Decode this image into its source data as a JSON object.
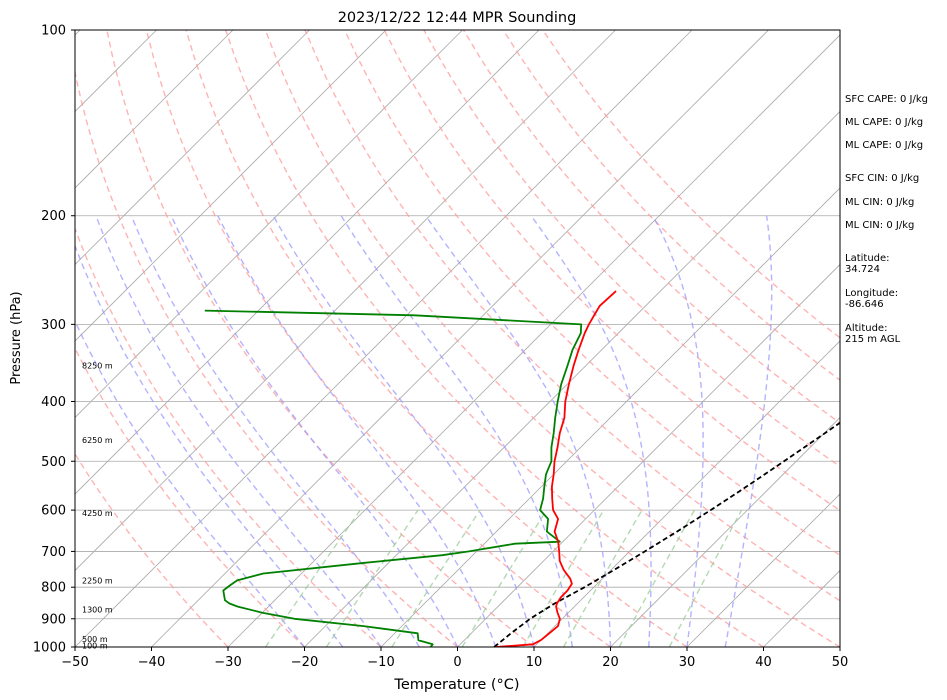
{
  "chart_data": {
    "type": "skew-t",
    "title": "2023/12/22 12:44 MPR Sounding",
    "xlabel": "Temperature (°C)",
    "ylabel": "Pressure (hPa)",
    "xlim": [
      -50,
      50
    ],
    "ylim": [
      1000,
      100
    ],
    "y_scale": "log",
    "skew_degrees": 45,
    "grid": true,
    "x_ticks": [
      -50,
      -40,
      -30,
      -20,
      -10,
      0,
      10,
      20,
      30,
      40,
      50
    ],
    "y_ticks": [
      100,
      200,
      300,
      400,
      500,
      600,
      700,
      800,
      900,
      1000
    ],
    "colors": {
      "temperature": "#ff0000",
      "dewpoint": "#008000",
      "parcel": "#000000",
      "dry_adiabats": "#ff9999",
      "moist_adiabats": "#9999ff",
      "mixing_ratio": "#99cc99",
      "isotherms": "#aaaaaa",
      "isobars": "#aaaaaa"
    },
    "dry_adiabats_theta_c": [
      -30,
      -20,
      -10,
      0,
      10,
      20,
      30,
      40,
      50,
      60,
      70,
      80,
      90,
      100,
      110,
      120
    ],
    "moist_adiabats_theta_c": [
      -20,
      -15,
      -10,
      -5,
      0,
      5,
      10,
      15,
      20,
      25,
      30,
      35
    ],
    "mixing_ratio_gkg": [
      0.5,
      1,
      2,
      4,
      7,
      10,
      16,
      24
    ],
    "temperature": {
      "p": [
        1000,
        990,
        975,
        950,
        925,
        900,
        880,
        860,
        850,
        830,
        810,
        790,
        775,
        750,
        725,
        700,
        675,
        650,
        620,
        600,
        575,
        550,
        525,
        500,
        475,
        450,
        425,
        400,
        375,
        350,
        330,
        310,
        300,
        290,
        280,
        265
      ],
      "t": [
        5.0,
        9.5,
        10.0,
        10.2,
        10.4,
        9.7,
        8.6,
        7.6,
        7.3,
        7.0,
        7.0,
        6.7,
        5.8,
        3.8,
        2.1,
        0.8,
        -0.6,
        -2.4,
        -3.6,
        -5.4,
        -7.0,
        -8.6,
        -10.0,
        -11.6,
        -13.0,
        -14.6,
        -16.0,
        -18.0,
        -19.8,
        -21.6,
        -23.0,
        -24.4,
        -25.0,
        -25.5,
        -26.0,
        -25.8
      ]
    },
    "dewpoint": {
      "p": [
        1000,
        990,
        975,
        950,
        925,
        900,
        880,
        860,
        850,
        840,
        830,
        810,
        795,
        780,
        760,
        730,
        710,
        700,
        680,
        675,
        650,
        620,
        600,
        575,
        550,
        525,
        500,
        475,
        450,
        425,
        400,
        375,
        350,
        330,
        310,
        300,
        290,
        285
      ],
      "t": [
        -3.5,
        -3.6,
        -6.0,
        -7.0,
        -15.0,
        -25.0,
        -30.0,
        -34.0,
        -35.5,
        -36.5,
        -37.0,
        -38.0,
        -37.8,
        -37.5,
        -35.0,
        -23.0,
        -14.0,
        -11.0,
        -6.0,
        -0.4,
        -3.4,
        -4.9,
        -7.1,
        -8.2,
        -9.6,
        -11.0,
        -12.0,
        -13.8,
        -15.4,
        -17.2,
        -19.0,
        -20.8,
        -22.4,
        -23.8,
        -24.9,
        -26.0,
        -49.0,
        -77.0
      ]
    },
    "parcel": {
      "p": [
        1000,
        950,
        900,
        850,
        800,
        750,
        700,
        650,
        600,
        550,
        500,
        450,
        400,
        350,
        300,
        270
      ],
      "t": [
        4.8,
        5.2,
        5.8,
        7.0,
        8.8,
        10.4,
        12.0,
        13.6,
        15.2,
        16.8,
        18.4,
        20.1,
        21.9,
        23.8,
        26.2,
        28.1
      ]
    },
    "height_labels": [
      {
        "p": 995,
        "label": "100 m"
      },
      {
        "p": 970,
        "label": "500 m"
      },
      {
        "p": 870,
        "label": "1300 m"
      },
      {
        "p": 780,
        "label": "2250 m"
      },
      {
        "p": 607,
        "label": "4250 m"
      },
      {
        "p": 462,
        "label": "6250 m"
      },
      {
        "p": 350,
        "label": "8250 m"
      }
    ],
    "info_panel": [
      {
        "text": "SFC CAPE: 0 J/kg"
      },
      {
        "text": "ML CAPE: 0 J/kg"
      },
      {
        "text": "ML CAPE: 0 J/kg"
      },
      {
        "text": "SFC CIN: 0 J/kg"
      },
      {
        "text": "ML CIN: 0 J/kg"
      },
      {
        "text": "ML CIN: 0 J/kg"
      },
      {
        "text": "Latitude:\n34.724"
      },
      {
        "text": "Longitude:\n-86.646"
      },
      {
        "text": "Altitude:\n215 m AGL"
      }
    ]
  }
}
